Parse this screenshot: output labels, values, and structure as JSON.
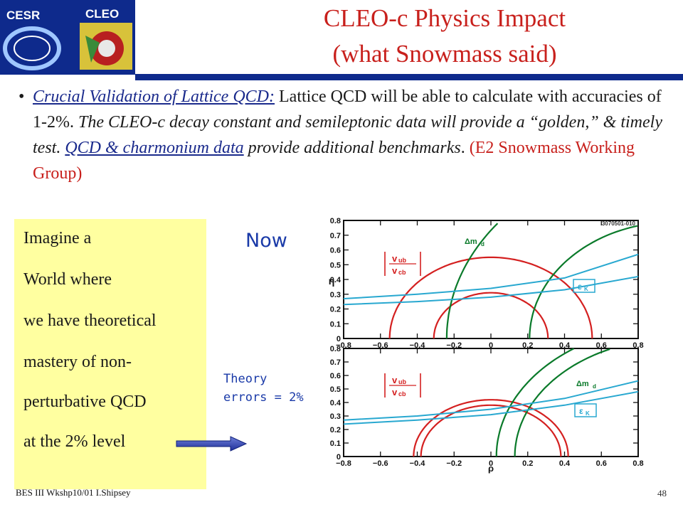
{
  "logos": {
    "left": "CESR",
    "right": "CLEO"
  },
  "title": {
    "line1": "CLEO-c Physics Impact",
    "line2": "(what Snowmass said)"
  },
  "bullet": {
    "symbol": "•",
    "heading": "Crucial Validation of Lattice QCD:",
    "s1": " Lattice QCD will be able to calculate with accuracies of 1-2%. ",
    "s2": "The CLEO-c decay constant and semileptonic  data will provide a “golden,” & timely test. ",
    "s3": "QCD & charmonium data",
    "s4": " provide additional benchmarks",
    "s5": ". ",
    "s6": "(E2 Snowmass Working Group)"
  },
  "box": {
    "lines": [
      "Imagine a",
      "World where",
      "we have theoretical",
      "mastery of non-",
      "perturbative QCD",
      "at the 2% level"
    ]
  },
  "now_label": "Now",
  "theory_label": {
    "line1": "Theory",
    "line2": "errors = 2%"
  },
  "chart": {
    "code": "3070501-010",
    "ylabel": "η",
    "xlabel": "ρ",
    "xticks": [
      "−0.8",
      "−0.6",
      "−0.4",
      "−0.2",
      "0",
      "0.2",
      "0.4",
      "0.6",
      "0.8"
    ],
    "yticks": [
      "0",
      "0.1",
      "0.2",
      "0.3",
      "0.4",
      "0.5",
      "0.6",
      "0.7",
      "0.8"
    ],
    "labels": {
      "dm": "Δm",
      "dm_sub": "d",
      "vub": "v",
      "vub_sub": "ub",
      "vcb": "v",
      "vcb_sub": "cb",
      "eps": "ε",
      "eps_sub": "K"
    }
  },
  "chart_data": [
    {
      "type": "line",
      "panel": "Now",
      "xlim": [
        -0.8,
        0.8
      ],
      "ylim": [
        0,
        0.8
      ],
      "xlabel": "ρ",
      "ylabel": "η",
      "series": [
        {
          "name": "|Vub/Vcb|",
          "color": "#d42020",
          "kind": "circle",
          "center": [
            0,
            0
          ],
          "radii": [
            0.55,
            0.31
          ]
        },
        {
          "name": "Δmd",
          "color": "#0a7a2a",
          "kind": "circle",
          "center": [
            1,
            0
          ],
          "radii": [
            1.24,
            0.79
          ]
        },
        {
          "name": "|εK|",
          "color": "#28a8d0",
          "x": [
            -0.8,
            -0.4,
            0,
            0.4,
            0.8
          ],
          "values_lower": [
            0.23,
            0.25,
            0.28,
            0.33,
            0.42
          ],
          "values_upper": [
            0.27,
            0.3,
            0.34,
            0.41,
            0.57
          ]
        }
      ]
    },
    {
      "type": "line",
      "panel": "Theory errors = 2%",
      "xlim": [
        -0.8,
        0.8
      ],
      "ylim": [
        0,
        0.8
      ],
      "xlabel": "ρ",
      "ylabel": "",
      "series": [
        {
          "name": "|Vub/Vcb|",
          "color": "#d42020",
          "kind": "circle",
          "center": [
            0,
            0
          ],
          "radii": [
            0.42,
            0.38
          ]
        },
        {
          "name": "Δmd",
          "color": "#0a7a2a",
          "kind": "circle",
          "center": [
            1,
            0
          ],
          "radii": [
            0.97,
            0.87
          ]
        },
        {
          "name": "|εK|",
          "color": "#28a8d0",
          "x": [
            -0.8,
            -0.4,
            0,
            0.4,
            0.8
          ],
          "values_lower": [
            0.24,
            0.27,
            0.31,
            0.38,
            0.48
          ],
          "values_upper": [
            0.27,
            0.3,
            0.35,
            0.43,
            0.56
          ]
        }
      ]
    }
  ]
}
